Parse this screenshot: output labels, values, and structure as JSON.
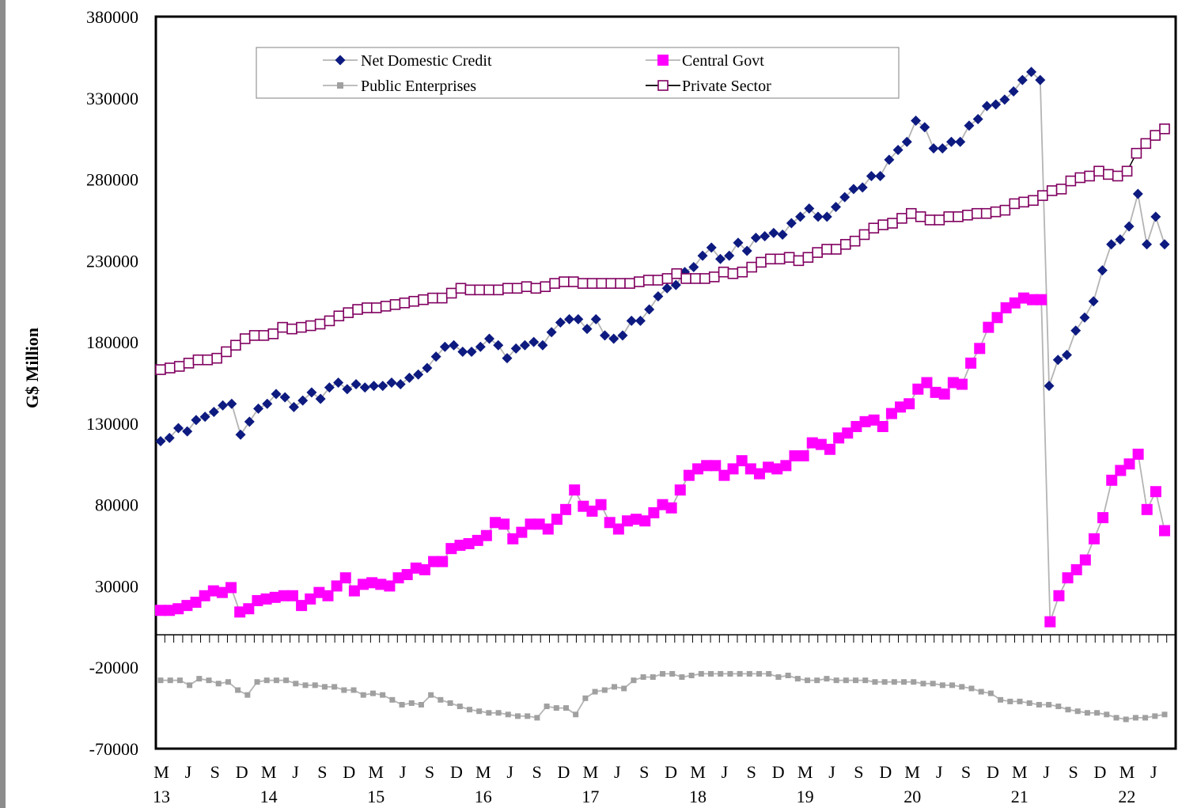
{
  "chart_data": {
    "type": "line",
    "xlabel": "",
    "ylabel": "G$ Million",
    "ylim": [
      -70000,
      380000
    ],
    "yticks": [
      380000,
      330000,
      280000,
      230000,
      180000,
      130000,
      80000,
      30000,
      -20000,
      -70000
    ],
    "x_month_labels": [
      "M",
      "J",
      "S",
      "D",
      "M",
      "J",
      "S",
      "D",
      "M",
      "J",
      "S",
      "D",
      "M",
      "J",
      "S",
      "D",
      "M",
      "J",
      "S",
      "D",
      "M",
      "J",
      "S",
      "D",
      "M",
      "J",
      "S",
      "D",
      "M",
      "J",
      "S",
      "D",
      "M",
      "J",
      "S",
      "D",
      "M",
      "J"
    ],
    "x_year_labels": [
      "13",
      "14",
      "15",
      "16",
      "17",
      "18",
      "19",
      "20",
      "21",
      "22"
    ],
    "legend_position": "top-center",
    "colors": {
      "net": "#0d1a80",
      "govt": "#ff00ff",
      "public": "#a0a0a0",
      "private_line": "#000000",
      "private_marker": "#800060"
    },
    "series": [
      {
        "name": "Net Domestic Credit",
        "key": "net",
        "marker": "diamond",
        "values": [
          119000,
          121000,
          127000,
          125000,
          132000,
          134000,
          137000,
          141000,
          142000,
          123000,
          131000,
          139000,
          142000,
          148000,
          146000,
          140000,
          144000,
          149000,
          145000,
          152000,
          155000,
          151000,
          154000,
          152000,
          153000,
          153000,
          155000,
          154000,
          158000,
          160000,
          164000,
          171000,
          177000,
          178000,
          174000,
          174000,
          177000,
          182000,
          178000,
          170000,
          176000,
          178000,
          180000,
          178000,
          186000,
          192000,
          194000,
          194000,
          188000,
          194000,
          184000,
          182000,
          184000,
          193000,
          193000,
          200000,
          208000,
          213000,
          215000,
          223000,
          226000,
          233000,
          238000,
          231000,
          233000,
          241000,
          236000,
          244000,
          245000,
          247000,
          246000,
          253000,
          257000,
          262000,
          257000,
          257000,
          263000,
          269000,
          274000,
          275000,
          282000,
          282000,
          292000,
          298000,
          303000,
          316000,
          312000,
          299000,
          299000,
          303000,
          303000,
          313000,
          317000,
          325000,
          326000,
          329000,
          334000,
          341000,
          346000,
          341000,
          153000,
          169000,
          172000,
          187000,
          195000,
          205000,
          224000,
          240000,
          243000,
          251000,
          271000,
          240000,
          257000,
          240000
        ]
      },
      {
        "name": "Central Govt",
        "key": "govt",
        "marker": "square",
        "values": [
          15000,
          15000,
          16000,
          18000,
          20000,
          24000,
          27000,
          26000,
          29000,
          14000,
          16000,
          21000,
          22000,
          23000,
          24000,
          24000,
          18000,
          22000,
          26000,
          24000,
          30000,
          35000,
          27000,
          31000,
          32000,
          31000,
          30000,
          35000,
          37000,
          41000,
          40000,
          45000,
          45000,
          53000,
          55000,
          56000,
          58000,
          61000,
          69000,
          68000,
          59000,
          63000,
          68000,
          68000,
          65000,
          71000,
          77000,
          89000,
          79000,
          76000,
          80000,
          69000,
          65000,
          70000,
          71000,
          70000,
          75000,
          80000,
          78000,
          89000,
          98000,
          102000,
          104000,
          104000,
          98000,
          102000,
          107000,
          102000,
          99000,
          103000,
          102000,
          104000,
          110000,
          110000,
          118000,
          117000,
          114000,
          121000,
          124000,
          128000,
          131000,
          132000,
          128000,
          136000,
          140000,
          142000,
          151000,
          155000,
          149000,
          148000,
          155000,
          154000,
          167000,
          176000,
          189000,
          195000,
          201000,
          204000,
          207000,
          206000,
          206000,
          8000,
          24000,
          35000,
          40000,
          46000,
          59000,
          72000,
          95000,
          101000,
          105000,
          111000,
          77000,
          88000,
          64000
        ]
      },
      {
        "name": "Public Enterprises",
        "key": "public",
        "marker": "small-square",
        "values": [
          -28000,
          -28000,
          -28000,
          -31000,
          -27000,
          -28000,
          -30000,
          -29000,
          -34000,
          -37000,
          -29000,
          -28000,
          -28000,
          -28000,
          -30000,
          -31000,
          -31000,
          -32000,
          -32000,
          -34000,
          -34000,
          -37000,
          -36000,
          -37000,
          -40000,
          -43000,
          -42000,
          -43000,
          -37000,
          -40000,
          -42000,
          -44000,
          -46000,
          -47000,
          -48000,
          -48000,
          -49000,
          -50000,
          -50000,
          -51000,
          -44000,
          -45000,
          -45000,
          -49000,
          -39000,
          -35000,
          -34000,
          -32000,
          -33000,
          -28000,
          -26000,
          -26000,
          -24000,
          -24000,
          -26000,
          -25000,
          -24000,
          -24000,
          -24000,
          -24000,
          -24000,
          -24000,
          -24000,
          -24000,
          -26000,
          -25000,
          -27000,
          -28000,
          -28000,
          -27000,
          -28000,
          -28000,
          -28000,
          -28000,
          -29000,
          -29000,
          -29000,
          -29000,
          -29000,
          -30000,
          -30000,
          -31000,
          -31000,
          -32000,
          -33000,
          -35000,
          -36000,
          -40000,
          -41000,
          -41000,
          -42000,
          -43000,
          -43000,
          -44000,
          -46000,
          -47000,
          -48000,
          -48000,
          -49000,
          -51000,
          -52000,
          -51000,
          -51000,
          -50000,
          -49000
        ]
      },
      {
        "name": "Private Sector",
        "key": "private",
        "marker": "open-square",
        "values": [
          163000,
          164000,
          165000,
          167000,
          169000,
          169000,
          170000,
          174000,
          178000,
          182000,
          184000,
          184000,
          185000,
          189000,
          188000,
          189000,
          190000,
          191000,
          193000,
          196000,
          198000,
          200000,
          201000,
          201000,
          202000,
          203000,
          204000,
          205000,
          206000,
          207000,
          207000,
          210000,
          213000,
          212000,
          212000,
          212000,
          212000,
          213000,
          213000,
          214000,
          213000,
          214000,
          216000,
          217000,
          217000,
          216000,
          216000,
          216000,
          216000,
          216000,
          216000,
          217000,
          218000,
          218000,
          219000,
          222000,
          219000,
          219000,
          219000,
          220000,
          223000,
          222000,
          223000,
          226000,
          229000,
          231000,
          231000,
          232000,
          230000,
          232000,
          235000,
          237000,
          237000,
          240000,
          242000,
          246000,
          250000,
          252000,
          253000,
          256000,
          259000,
          257000,
          255000,
          255000,
          257000,
          257000,
          258000,
          259000,
          259000,
          260000,
          261000,
          265000,
          266000,
          267000,
          270000,
          273000,
          274000,
          279000,
          281000,
          282000,
          285000,
          283000,
          282000,
          285000,
          296000,
          302000,
          307000,
          311000
        ]
      }
    ]
  }
}
